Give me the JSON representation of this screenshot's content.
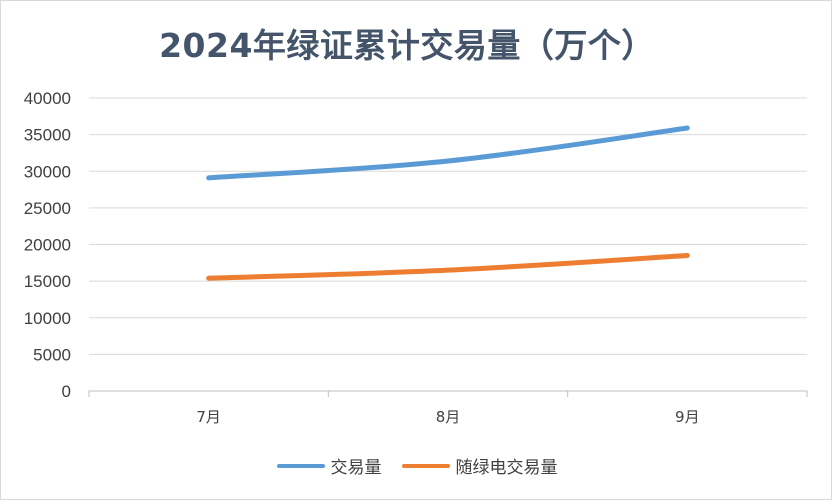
{
  "chart_data": {
    "type": "line",
    "title": "2024年绿证累计交易量（万个）",
    "categories": [
      "7月",
      "8月",
      "9月"
    ],
    "yticks": [
      "0",
      "5000",
      "10000",
      "15000",
      "20000",
      "25000",
      "30000",
      "35000",
      "40000"
    ],
    "ylim": [
      0,
      40000
    ],
    "grid": true,
    "legend_position": "bottom",
    "series": [
      {
        "name": "交易量",
        "values": [
          29100,
          31400,
          35900
        ],
        "color": "#5b9bd5"
      },
      {
        "name": "随绿电交易量",
        "values": [
          15400,
          16500,
          18500
        ],
        "color": "#ed7d31"
      }
    ]
  }
}
